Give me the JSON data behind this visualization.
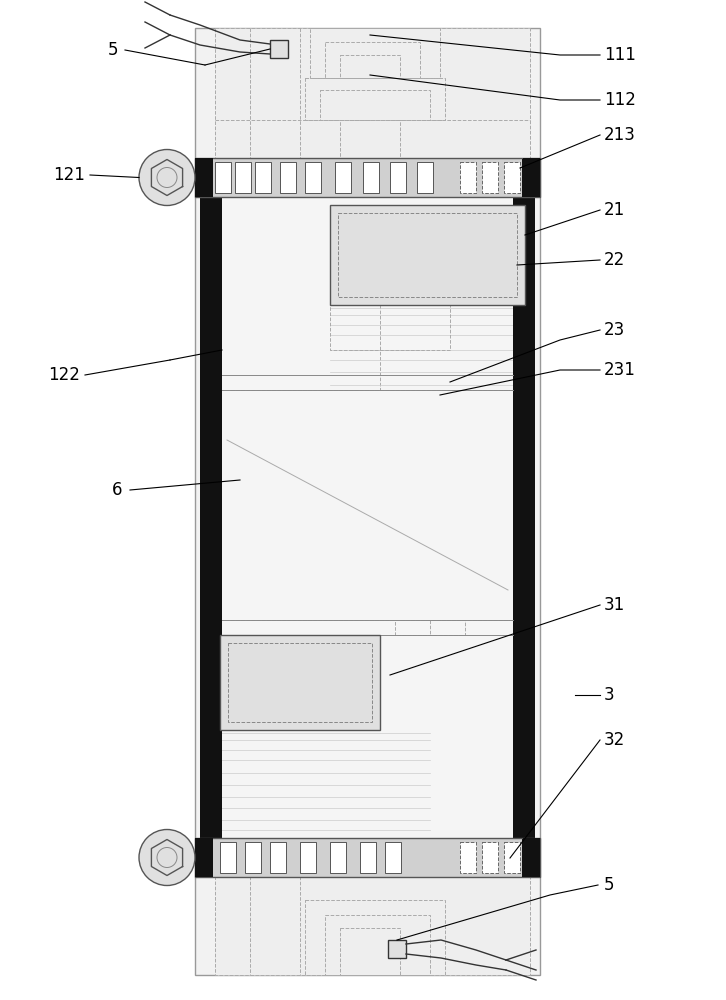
{
  "bg_color": "#ffffff",
  "figsize": [
    7.26,
    10.0
  ],
  "dpi": 100,
  "labels": [
    "5",
    "111",
    "112",
    "213",
    "121",
    "21",
    "22",
    "122",
    "23",
    "231",
    "6",
    "31",
    "3",
    "32",
    "5"
  ],
  "lc": "#000000",
  "gray1": "#bbbbbb",
  "gray2": "#888888",
  "black": "#111111",
  "slot_color": "#ffffff",
  "clamp_face": "#d8d8d8"
}
